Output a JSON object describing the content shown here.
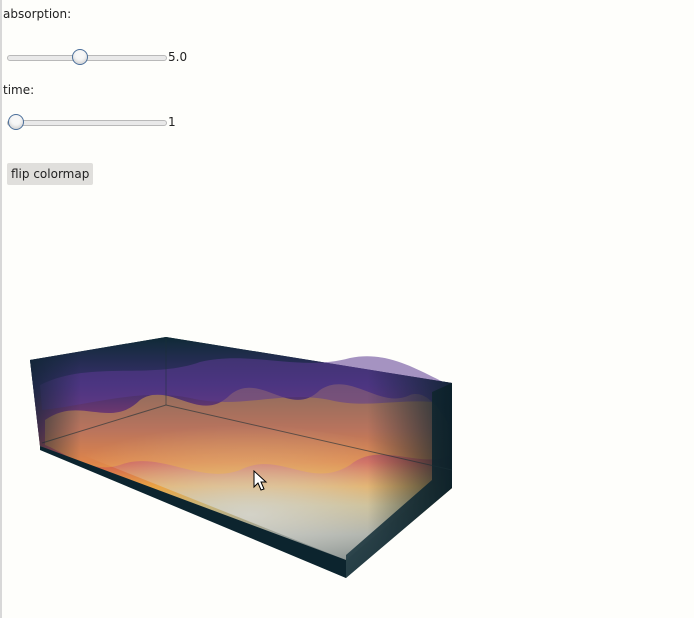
{
  "controls": {
    "absorption": {
      "label": "absorption:",
      "value": "5.0",
      "fraction": 0.45
    },
    "time": {
      "label": "time:",
      "value": "1",
      "fraction": 0.0
    },
    "flip_button_label": "flip colormap"
  },
  "colors": {
    "background": "#fefefb",
    "volume_dark": "#0c242e",
    "colormap": [
      "#1a1f4a",
      "#4a2c7c",
      "#9a3d6a",
      "#d25a4a",
      "#e8a040",
      "#f2d85c",
      "#cfcfc9"
    ]
  },
  "viewer": {
    "cursor_icon": "arrow-cursor-icon"
  }
}
